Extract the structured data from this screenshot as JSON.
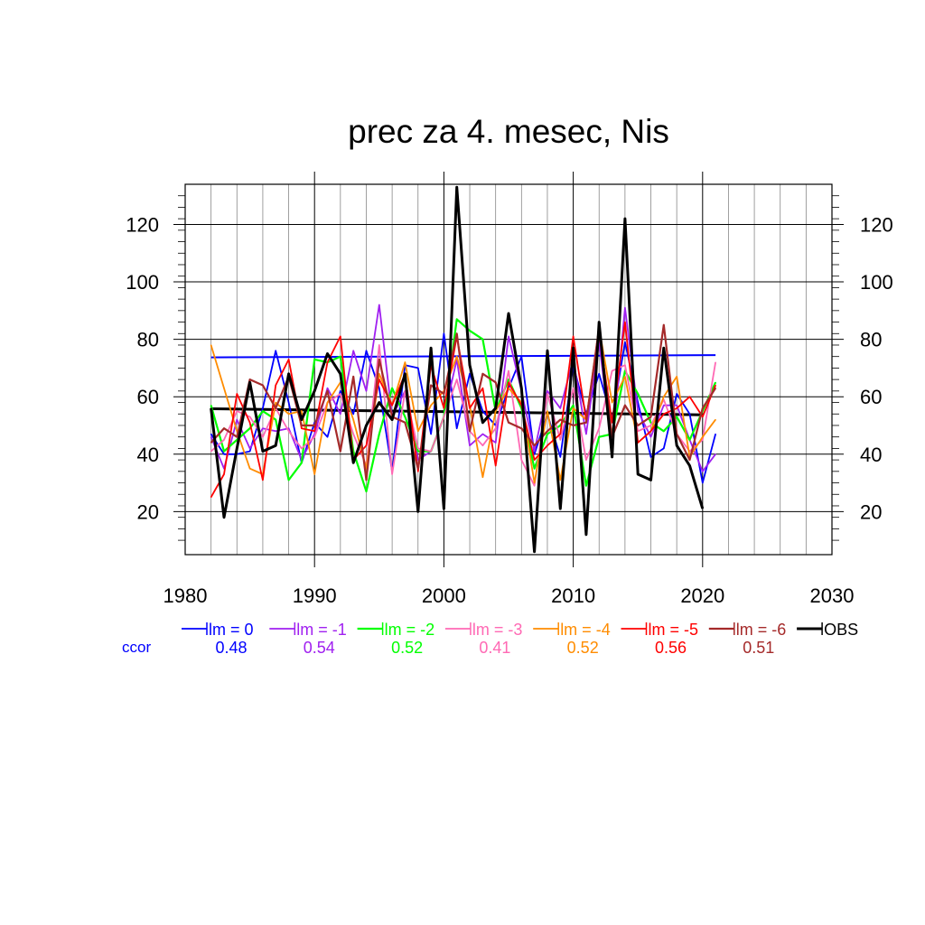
{
  "chart_data": {
    "type": "line",
    "title": "prec za 4. mesec, Nis",
    "xlabel": "",
    "ylabel": "",
    "xlim": [
      1980,
      2030
    ],
    "ylim": [
      5,
      134
    ],
    "grid": true,
    "xticks": [
      1980,
      1990,
      2000,
      2010,
      2020,
      2030
    ],
    "yticks": [
      20,
      40,
      60,
      80,
      100,
      120
    ],
    "legend_position": "bottom",
    "ccor_label": "ccor",
    "x": [
      1982,
      1983,
      1984,
      1985,
      1986,
      1987,
      1988,
      1989,
      1990,
      1991,
      1992,
      1993,
      1994,
      1995,
      1996,
      1997,
      1998,
      1999,
      2000,
      2001,
      2002,
      2003,
      2004,
      2005,
      2006,
      2007,
      2008,
      2009,
      2010,
      2011,
      2012,
      2013,
      2014,
      2015,
      2016,
      2017,
      2018,
      2019,
      2020,
      2021
    ],
    "series": [
      {
        "name": "lm = 0",
        "color": "#0000ff",
        "ccor": "0.48",
        "width": 1.8,
        "values": [
          47,
          40,
          40,
          41,
          56,
          76,
          58,
          37,
          51,
          46,
          62,
          54,
          76,
          63,
          34,
          71,
          70,
          47,
          82,
          49,
          68,
          55,
          50,
          63,
          74,
          40,
          54,
          39,
          71,
          54,
          68,
          52,
          79,
          58,
          39,
          42,
          61,
          54,
          30,
          47
        ]
      },
      {
        "name": "lm = -1",
        "color": "#a020f0",
        "ccor": "0.54",
        "width": 1.8,
        "values": [
          46,
          35,
          52,
          42,
          49,
          48,
          49,
          38,
          47,
          63,
          54,
          76,
          62,
          92,
          53,
          62,
          38,
          41,
          53,
          73,
          43,
          47,
          44,
          81,
          62,
          41,
          62,
          56,
          73,
          47,
          79,
          42,
          91,
          55,
          46,
          57,
          57,
          45,
          34,
          40
        ]
      },
      {
        "name": "lm = -2",
        "color": "#00ff00",
        "ccor": "0.52",
        "width": 2.2,
        "values": [
          57,
          41,
          45,
          49,
          55,
          52,
          31,
          37,
          73,
          72,
          74,
          41,
          27,
          47,
          63,
          53,
          41,
          41,
          53,
          87,
          83,
          80,
          55,
          66,
          56,
          35,
          47,
          50,
          57,
          29,
          46,
          47,
          69,
          61,
          51,
          48,
          53,
          45,
          55,
          65
        ]
      },
      {
        "name": "lm = -3",
        "color": "#ff69b4",
        "ccor": "0.41",
        "width": 1.8,
        "values": [
          41,
          45,
          55,
          53,
          46,
          56,
          48,
          42,
          46,
          58,
          61,
          47,
          36,
          78,
          33,
          62,
          42,
          41,
          53,
          66,
          48,
          43,
          49,
          69,
          38,
          29,
          61,
          45,
          63,
          38,
          49,
          69,
          71,
          48,
          50,
          59,
          47,
          41,
          45,
          72
        ]
      },
      {
        "name": "lm = -4",
        "color": "#ff8c00",
        "ccor": "0.52",
        "width": 1.8,
        "values": [
          78,
          63,
          48,
          35,
          33,
          58,
          54,
          55,
          33,
          58,
          65,
          52,
          35,
          68,
          57,
          72,
          48,
          57,
          62,
          74,
          57,
          32,
          55,
          63,
          58,
          30,
          55,
          31,
          56,
          52,
          84,
          58,
          67,
          44,
          48,
          60,
          67,
          39,
          46,
          52
        ]
      },
      {
        "name": "lm = -5",
        "color": "#ff0000",
        "ccor": "0.56",
        "width": 1.8,
        "values": [
          25,
          33,
          61,
          51,
          31,
          64,
          73,
          49,
          48,
          72,
          81,
          38,
          43,
          66,
          57,
          68,
          34,
          71,
          56,
          81,
          56,
          63,
          36,
          65,
          57,
          38,
          43,
          47,
          81,
          52,
          82,
          51,
          86,
          44,
          48,
          54,
          56,
          60,
          53,
          64
        ]
      },
      {
        "name": "lm = -6",
        "color": "#a52a2a",
        "ccor": "0.51",
        "width": 2.2,
        "values": [
          44,
          49,
          46,
          66,
          64,
          56,
          67,
          50,
          50,
          62,
          41,
          67,
          31,
          73,
          53,
          51,
          35,
          64,
          61,
          82,
          48,
          68,
          65,
          51,
          49,
          43,
          48,
          52,
          50,
          51,
          84,
          46,
          57,
          50,
          53,
          85,
          47,
          38,
          56,
          63
        ]
      },
      {
        "name": "OBS",
        "color": "#000000",
        "ccor": "",
        "width": 3,
        "values": [
          56,
          18,
          42,
          65,
          41,
          43,
          68,
          52,
          62,
          75,
          68,
          37,
          50,
          58,
          52,
          68,
          20,
          77,
          21,
          133,
          71,
          51,
          56,
          89,
          63,
          6,
          76,
          21,
          77,
          12,
          86,
          39,
          122,
          33,
          31,
          77,
          43,
          36,
          21,
          null
        ]
      }
    ],
    "trend_lines": [
      {
        "name": "lm = 0",
        "color": "#0000ff",
        "x": [
          1982,
          2021
        ],
        "values": [
          73.7,
          74.5
        ]
      },
      {
        "name": "OBS",
        "color": "#000000",
        "x": [
          1982,
          2020
        ],
        "values": [
          55.8,
          53.7
        ]
      }
    ]
  }
}
